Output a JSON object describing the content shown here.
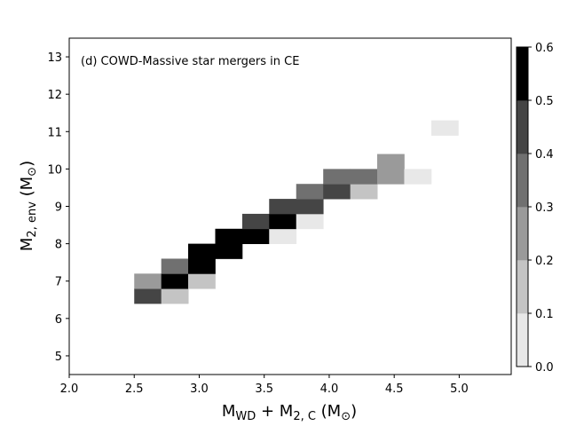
{
  "chart_data": {
    "type": "heatmap",
    "annotation": "(d) COWD-Massive star mergers in CE",
    "xlabel": "M_WD + M_2,C (M_⊙)",
    "ylabel": "M_2,env (M_⊙)",
    "xlim": [
      2.0,
      5.4
    ],
    "ylim": [
      4.5,
      13.5
    ],
    "x_ticks": [
      2.0,
      2.5,
      3.0,
      3.5,
      4.0,
      4.5,
      5.0
    ],
    "x_tick_labels": [
      "2.0",
      "2.5",
      "3.0",
      "3.5",
      "4.0",
      "4.5",
      "5.0"
    ],
    "y_ticks": [
      5,
      6,
      7,
      8,
      9,
      10,
      11,
      12,
      13
    ],
    "y_tick_labels": [
      "5",
      "6",
      "7",
      "8",
      "9",
      "10",
      "11",
      "12",
      "13"
    ],
    "bin_width_x": 0.2077,
    "bin_width_y": 0.4,
    "colorbar": {
      "min": 0.0,
      "max": 0.6,
      "ticks": [
        "0.0",
        "0.1",
        "0.2",
        "0.3",
        "0.4",
        "0.5",
        "0.6"
      ],
      "levels": [
        0.0,
        0.1,
        0.2,
        0.3,
        0.4,
        0.5,
        0.6
      ],
      "colormap": "Greys",
      "level_colors": [
        "#ffffff",
        "#e8e8e8",
        "#c4c4c4",
        "#9a9a9a",
        "#707070",
        "#454545",
        "#000000"
      ]
    },
    "cells": [
      {
        "x": 2.5,
        "y": 6.4,
        "value": 0.45
      },
      {
        "x": 2.5,
        "y": 6.8,
        "value": 0.25
      },
      {
        "x": 2.708,
        "y": 6.4,
        "value": 0.12
      },
      {
        "x": 2.708,
        "y": 6.8,
        "value": 0.58
      },
      {
        "x": 2.708,
        "y": 7.2,
        "value": 0.38
      },
      {
        "x": 2.915,
        "y": 6.8,
        "value": 0.15
      },
      {
        "x": 2.915,
        "y": 7.2,
        "value": 0.62
      },
      {
        "x": 2.915,
        "y": 7.6,
        "value": 0.56
      },
      {
        "x": 3.123,
        "y": 7.6,
        "value": 0.58
      },
      {
        "x": 3.123,
        "y": 8.0,
        "value": 0.52
      },
      {
        "x": 3.331,
        "y": 8.0,
        "value": 0.62
      },
      {
        "x": 3.331,
        "y": 8.4,
        "value": 0.45
      },
      {
        "x": 3.538,
        "y": 8.0,
        "value": 0.08
      },
      {
        "x": 3.538,
        "y": 8.4,
        "value": 0.52
      },
      {
        "x": 3.538,
        "y": 8.8,
        "value": 0.45
      },
      {
        "x": 3.746,
        "y": 8.4,
        "value": 0.08
      },
      {
        "x": 3.746,
        "y": 8.8,
        "value": 0.45
      },
      {
        "x": 3.746,
        "y": 9.2,
        "value": 0.35
      },
      {
        "x": 3.954,
        "y": 9.2,
        "value": 0.45
      },
      {
        "x": 3.954,
        "y": 9.6,
        "value": 0.32
      },
      {
        "x": 4.162,
        "y": 9.2,
        "value": 0.15
      },
      {
        "x": 4.162,
        "y": 9.6,
        "value": 0.38
      },
      {
        "x": 4.369,
        "y": 9.6,
        "value": 0.28
      },
      {
        "x": 4.369,
        "y": 10.0,
        "value": 0.28
      },
      {
        "x": 4.577,
        "y": 9.6,
        "value": 0.08
      },
      {
        "x": 4.785,
        "y": 10.9,
        "value": 0.08
      }
    ]
  }
}
